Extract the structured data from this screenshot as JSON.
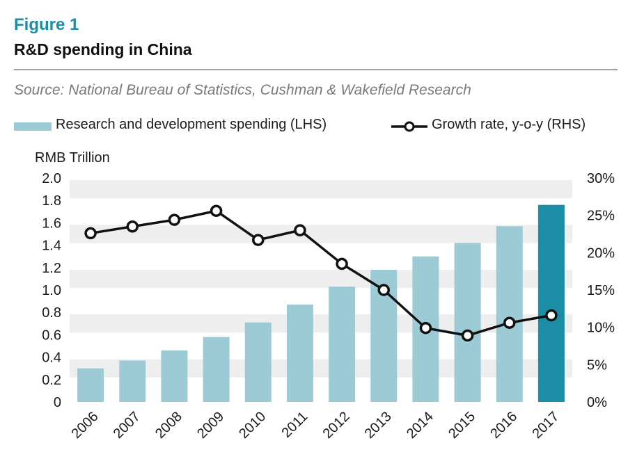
{
  "figure_label": "Figure 1",
  "title": "R&D spending in China",
  "source": "Source: National Bureau of Statistics, Cushman & Wakefield Research",
  "chart_data": {
    "type": "bar",
    "categories": [
      "2006",
      "2007",
      "2008",
      "2009",
      "2010",
      "2011",
      "2012",
      "2013",
      "2014",
      "2015",
      "2016",
      "2017"
    ],
    "series": [
      {
        "name": "Research and development spending (LHS)",
        "type": "bar",
        "axis": "left",
        "values": [
          0.3,
          0.37,
          0.46,
          0.58,
          0.71,
          0.87,
          1.03,
          1.18,
          1.3,
          1.42,
          1.57,
          1.76
        ],
        "color": "#9ccbd6",
        "highlight": {
          "category": "2017",
          "color": "#1b8ea6"
        }
      },
      {
        "name": "Growth rate, y-o-y (RHS)",
        "type": "line",
        "axis": "right",
        "values": [
          22.6,
          23.5,
          24.4,
          25.6,
          21.7,
          23.0,
          18.5,
          15.0,
          9.9,
          8.9,
          10.6,
          11.6
        ],
        "color": "#111111"
      }
    ],
    "ylabel": "RMB Trillion",
    "ylim": [
      0,
      2.0
    ],
    "yticks": [
      "0",
      "0.2",
      "0.4",
      "0.6",
      "0.8",
      "1.0",
      "1.2",
      "1.4",
      "1.6",
      "1.8",
      "2.0"
    ],
    "y2lim": [
      0,
      30
    ],
    "y2ticks": [
      "0%",
      "5%",
      "10%",
      "15%",
      "20%",
      "25%",
      "30%"
    ],
    "grid": true,
    "legend_position": "top"
  }
}
